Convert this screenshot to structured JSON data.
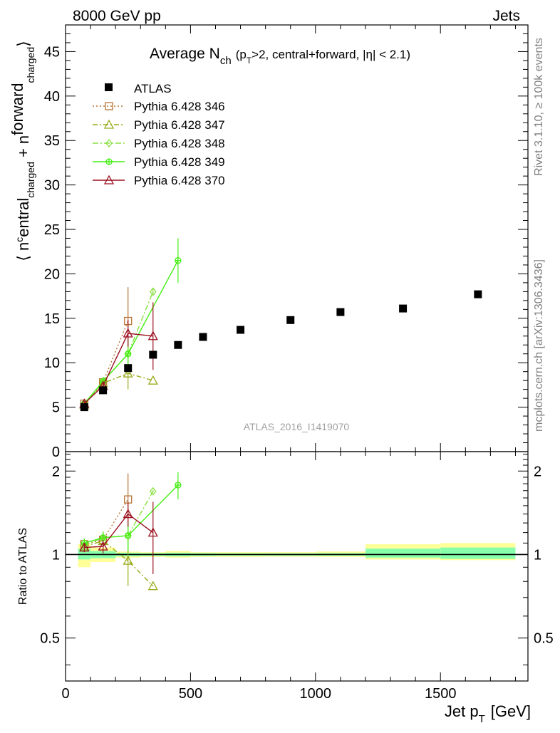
{
  "header": {
    "left": "8000 GeV pp",
    "right": "Jets"
  },
  "side_labels": {
    "rivet": "Rivet 3.1.10, ≥ 100k events",
    "mcplots": "mcplots.cern.ch [arXiv:1306.3436]"
  },
  "chart_data": {
    "type": "scatter",
    "title_main": "Average N",
    "title_sub": "ch",
    "title_cond": "(p",
    "title_cond_sub": "T",
    "title_cond_rest": ">2, central+forward, |η| < 2.1)",
    "watermark": "ATLAS_2016_I1419070",
    "ylabel_parts": [
      "⟨ n",
      "c",
      "entral",
      "charged",
      " + n",
      "forward",
      "charged",
      "⟩"
    ],
    "ratio_ylabel": "Ratio to ATLAS",
    "xlabel_main": "Jet p",
    "xlabel_sub": "T",
    "xlabel_unit": "[GeV]",
    "xlim": [
      0,
      1850
    ],
    "ylim": [
      0,
      48
    ],
    "ratio_ylim": [
      0.35,
      2.35
    ],
    "x_ticks": [
      0,
      500,
      1000,
      1500
    ],
    "x_tick_labels": [
      "0",
      "500",
      "1000",
      "1500"
    ],
    "y_ticks": [
      0,
      5,
      10,
      15,
      20,
      25,
      30,
      35,
      40,
      45
    ],
    "y_tick_labels": [
      "0",
      "5",
      "10",
      "15",
      "20",
      "25",
      "30",
      "35",
      "40",
      "45"
    ],
    "ratio_ticks": [
      0.5,
      1,
      2
    ],
    "ratio_tick_labels": [
      "0.5",
      "1",
      "2"
    ],
    "ratio_ticks_right": [
      "0.5",
      "1",
      "2"
    ],
    "legend_position": "top-left",
    "data": {
      "name": "ATLAS",
      "x": [
        75,
        150,
        250,
        350,
        450,
        550,
        700,
        900,
        1100,
        1350,
        1650
      ],
      "y": [
        5.0,
        6.9,
        9.4,
        10.9,
        12.0,
        12.9,
        13.7,
        14.8,
        15.7,
        16.1,
        17.7
      ]
    },
    "bands": [
      {
        "x0": 50,
        "x1": 100,
        "g": [
          0.96,
          1.05
        ],
        "y": [
          0.9,
          1.09
        ]
      },
      {
        "x0": 100,
        "x1": 200,
        "g": [
          0.97,
          1.03
        ],
        "y": [
          0.94,
          1.06
        ]
      },
      {
        "x0": 200,
        "x1": 300,
        "g": [
          0.985,
          1.015
        ],
        "y": [
          0.975,
          1.025
        ]
      },
      {
        "x0": 300,
        "x1": 400,
        "g": [
          0.988,
          1.012
        ],
        "y": [
          0.98,
          1.02
        ]
      },
      {
        "x0": 400,
        "x1": 500,
        "g": [
          0.985,
          1.015
        ],
        "y": [
          0.975,
          1.03
        ]
      },
      {
        "x0": 500,
        "x1": 600,
        "g": [
          0.988,
          1.012
        ],
        "y": [
          0.98,
          1.02
        ]
      },
      {
        "x0": 600,
        "x1": 800,
        "g": [
          0.99,
          1.01
        ],
        "y": [
          0.98,
          1.02
        ]
      },
      {
        "x0": 800,
        "x1": 1000,
        "g": [
          0.99,
          1.01
        ],
        "y": [
          0.982,
          1.02
        ]
      },
      {
        "x0": 1000,
        "x1": 1200,
        "g": [
          0.99,
          1.012
        ],
        "y": [
          0.98,
          1.025
        ]
      },
      {
        "x0": 1200,
        "x1": 1500,
        "g": [
          0.975,
          1.05
        ],
        "y": [
          0.96,
          1.09
        ]
      },
      {
        "x0": 1500,
        "x1": 1800,
        "g": [
          0.965,
          1.06
        ],
        "y": [
          0.955,
          1.1
        ]
      }
    ],
    "series": [
      {
        "name": "Pythia 6.428 346",
        "color": "#b87333",
        "dash": "2,3",
        "marker": "square",
        "x": [
          75,
          150,
          250
        ],
        "y": [
          5.4,
          7.8,
          14.7
        ],
        "yerr": [
          0.3,
          0.6,
          3.8
        ],
        "ratio": [
          1.09,
          1.13,
          1.58
        ],
        "rerr": [
          0.05,
          0.08,
          0.38
        ]
      },
      {
        "name": "Pythia 6.428 347",
        "color": "#9aaa1a",
        "dash": "7,3,2,3",
        "marker": "triangle",
        "x": [
          75,
          150,
          250,
          350
        ],
        "y": [
          5.3,
          7.7,
          8.8,
          8.0
        ],
        "yerr": [
          0.3,
          0.6,
          1.8,
          0
        ],
        "ratio": [
          1.07,
          1.12,
          0.95,
          0.77
        ],
        "rerr": [
          0.05,
          0.08,
          0.18,
          0
        ]
      },
      {
        "name": "Pythia 6.428 348",
        "color": "#88e040",
        "dash": "8,3,2,3",
        "marker": "diamond",
        "x": [
          75,
          150,
          250,
          350
        ],
        "y": [
          5.3,
          7.9,
          11.0,
          18.0
        ],
        "yerr": [
          0.3,
          0.5,
          1.6,
          0.3
        ],
        "ratio": [
          1.08,
          1.15,
          1.17,
          1.69
        ],
        "rerr": [
          0.04,
          0.06,
          0.14,
          0.02
        ]
      },
      {
        "name": "Pythia 6.428 349",
        "color": "#44ee11",
        "dash": "",
        "marker": "cross",
        "x": [
          75,
          150,
          250,
          450
        ],
        "y": [
          5.4,
          7.9,
          11.0,
          21.5
        ],
        "yerr": [
          0.3,
          0.5,
          1.6,
          2.5
        ],
        "ratio": [
          1.1,
          1.15,
          1.17,
          1.78
        ],
        "rerr": [
          0.04,
          0.06,
          0.14,
          0.2
        ]
      },
      {
        "name": "Pythia 6.428 370",
        "color": "#9b1020",
        "dash": "",
        "marker": "triangle",
        "x": [
          75,
          150,
          250,
          350
        ],
        "y": [
          5.4,
          7.4,
          13.3,
          13.0
        ],
        "yerr": [
          0.3,
          0.5,
          1.5,
          3.8
        ],
        "ratio": [
          1.06,
          1.07,
          1.4,
          1.2
        ],
        "rerr": [
          0.04,
          0.06,
          0.14,
          0.35
        ]
      }
    ]
  }
}
